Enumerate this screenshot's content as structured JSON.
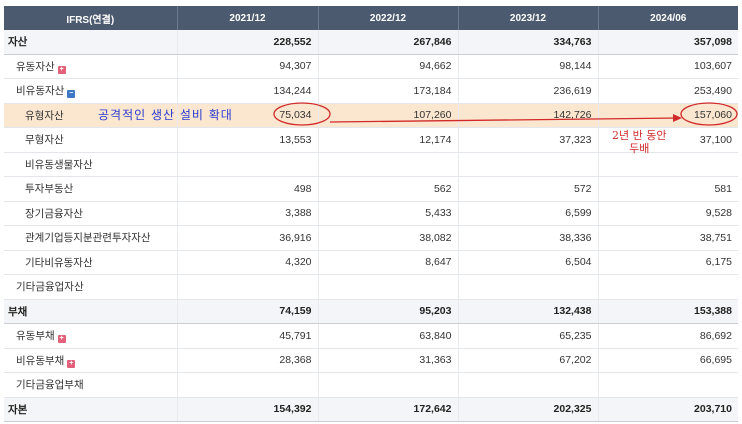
{
  "table": {
    "header": {
      "item_label": "IFRS(연결)",
      "periods": [
        "2021/12",
        "2022/12",
        "2023/12",
        "2024/06"
      ]
    },
    "rows": [
      {
        "label": "자산",
        "level": 0,
        "toggle": "",
        "values": [
          "228,552",
          "267,846",
          "334,763",
          "357,098"
        ]
      },
      {
        "label": "유동자산",
        "level": 1,
        "toggle": "plus",
        "values": [
          "94,307",
          "94,662",
          "98,144",
          "103,607"
        ]
      },
      {
        "label": "비유동자산",
        "level": 1,
        "toggle": "minus",
        "values": [
          "134,244",
          "173,184",
          "236,619",
          "253,490"
        ]
      },
      {
        "label": "유형자산",
        "level": 2,
        "toggle": "",
        "highlight": true,
        "values": [
          "75,034",
          "107,260",
          "142,726",
          "157,060"
        ]
      },
      {
        "label": "무형자산",
        "level": 2,
        "toggle": "",
        "values": [
          "13,553",
          "12,174",
          "37,323",
          "37,100"
        ]
      },
      {
        "label": "비유동생물자산",
        "level": 2,
        "toggle": "",
        "values": [
          "",
          "",
          "",
          ""
        ]
      },
      {
        "label": "투자부동산",
        "level": 2,
        "toggle": "",
        "values": [
          "498",
          "562",
          "572",
          "581"
        ]
      },
      {
        "label": "장기금융자산",
        "level": 2,
        "toggle": "",
        "values": [
          "3,388",
          "5,433",
          "6,599",
          "9,528"
        ]
      },
      {
        "label": "관계기업등지분관련투자자산",
        "level": 2,
        "toggle": "",
        "values": [
          "36,916",
          "38,082",
          "38,336",
          "38,751"
        ]
      },
      {
        "label": "기타비유동자산",
        "level": 2,
        "toggle": "",
        "values": [
          "4,320",
          "8,647",
          "6,504",
          "6,175"
        ]
      },
      {
        "label": "기타금융업자산",
        "level": 1,
        "toggle": "",
        "values": [
          "",
          "",
          "",
          ""
        ]
      },
      {
        "label": "부채",
        "level": 0,
        "toggle": "",
        "values": [
          "74,159",
          "95,203",
          "132,438",
          "153,388"
        ]
      },
      {
        "label": "유동부채",
        "level": 1,
        "toggle": "plus",
        "values": [
          "45,791",
          "63,840",
          "65,235",
          "86,692"
        ]
      },
      {
        "label": "비유동부채",
        "level": 1,
        "toggle": "plus",
        "values": [
          "28,368",
          "31,363",
          "67,202",
          "66,695"
        ]
      },
      {
        "label": "기타금융업부채",
        "level": 1,
        "toggle": "",
        "values": [
          "",
          "",
          "",
          ""
        ]
      },
      {
        "label": "자본",
        "level": 0,
        "toggle": "",
        "values": [
          "154,392",
          "172,642",
          "202,325",
          "203,710"
        ]
      }
    ]
  },
  "annotations": {
    "left_note": "공격적인 생산 설비 확대",
    "right_note_line1": "2년 반 동안",
    "right_note_line2": "두배",
    "colors": {
      "left_note": "#2a3bd1",
      "right_note": "#d12a2a",
      "highlight_row": "#fbe6cf"
    }
  }
}
